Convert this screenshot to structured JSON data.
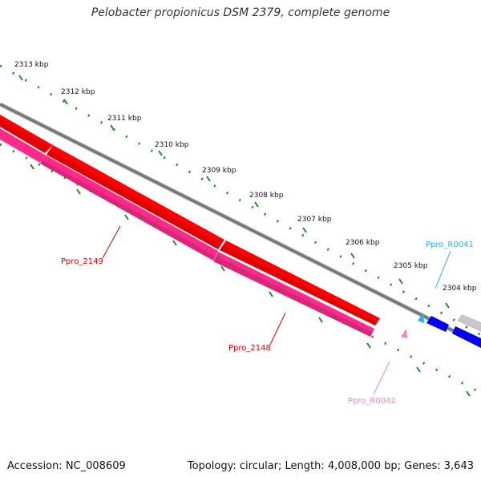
{
  "title": "Pelobacter propionicus DSM 2379, complete genome",
  "footer": {
    "accession": "Accession: NC_008609",
    "summary": "Topology: circular; Length: 4,008,000 bp; Genes: 3,643"
  },
  "ruler": {
    "unit": "kbp",
    "ticks": [
      "2313 kbp",
      "2312 kbp",
      "2311 kbp",
      "2310 kbp",
      "2309 kbp",
      "2308 kbp",
      "2307 kbp",
      "2306 kbp",
      "2305 kbp",
      "2304 kbp"
    ]
  },
  "features": [
    {
      "label": "Ppro_2149",
      "color": "#cc0000",
      "kind": "CDS"
    },
    {
      "label": "Ppro_2148",
      "color": "#cc0000",
      "kind": "CDS"
    },
    {
      "label": "Ppro_R0041",
      "color": "#22b8e0",
      "kind": "tRNA"
    },
    {
      "label": "Ppro_R0042",
      "color": "#ee88bb",
      "kind": "tRNA"
    }
  ],
  "colors": {
    "gene_forward": "#ff0000",
    "gene_reverse": "#ff2a8a",
    "backbone": "#808080",
    "tick": "#228b22",
    "other_gene": "#0000ee"
  }
}
